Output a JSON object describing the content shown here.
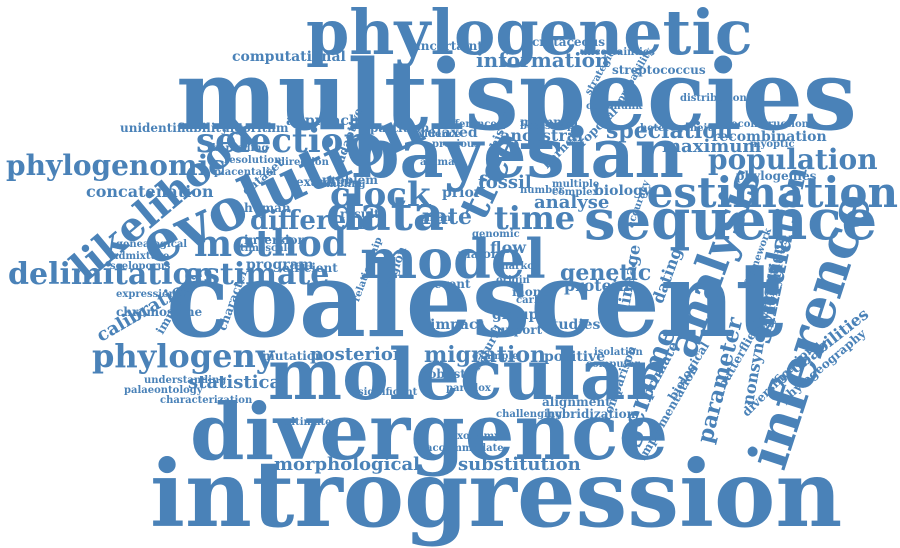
{
  "color": "#4a82b8",
  "words": [
    "phylogenetic",
    "multispecies",
    "bayesian",
    "coalescent",
    "molecular",
    "divergence",
    "introgression",
    "evolution",
    "sequence",
    "estimation",
    "model",
    "data",
    "analysis",
    "inference",
    "likelihood",
    "method",
    "selection",
    "population",
    "delimitation",
    "estimate",
    "phylogeny",
    "clock",
    "time",
    "tree",
    "speciation",
    "simulation",
    "migration",
    "phylogenomic",
    "information",
    "genome",
    "parameter",
    "computational",
    "different",
    "rate",
    "fossil",
    "concatenation",
    "calibration",
    "statistical",
    "morphological",
    "substitution",
    "posterior",
    "maximum",
    "recombination",
    "phylogenies",
    "dating",
    "genetic",
    "protein",
    "lineage",
    "primate",
    "nonsynonymous",
    "synonymous",
    "probabilities",
    "variation",
    "uncertainty",
    "cretaceous",
    "approach",
    "relaxed",
    "ancestral",
    "partition",
    "mammal",
    "human",
    "program",
    "mutation",
    "impact",
    "group",
    "support",
    "studies",
    "positive",
    "comparison",
    "hybridization",
    "alignment",
    "biological",
    "dataset",
    "adaptive",
    "algorithm",
    "resolution",
    "direction",
    "timescale",
    "efficient",
    "inversion",
    "expression",
    "chromosome",
    "important",
    "character",
    "understanding",
    "palaeontology",
    "characterization",
    "unidentifiability",
    "diversification",
    "phylogeography",
    "implementation",
    "butterflies",
    "isolation",
    "computer",
    "probability",
    "streptococcus",
    "strategies",
    "reconstruction",
    "distribution",
    "complex",
    "biology",
    "analyse",
    "flow",
    "prior",
    "result",
    "animal",
    "kernel",
    "history",
    "proposal",
    "bootstrap",
    "difference",
    "evidence",
    "previous",
    "multiple",
    "number",
    "sampling",
    "barcoding",
    "sceloporus",
    "admixture",
    "genealogical",
    "taxonomy",
    "accommodate",
    "paradox",
    "challenging",
    "relationship",
    "example",
    "uncertainties",
    "myoptic",
    "chipmunk",
    "heterogeneity",
    "framework",
    "accuracy",
    "origin",
    "region",
    "event",
    "major",
    "monte",
    "carlo",
    "markov",
    "chain",
    "ultimate",
    "placentalia",
    "examine",
    "problem",
    "genomic",
    "natural",
    "robust",
    "significant"
  ]
}
